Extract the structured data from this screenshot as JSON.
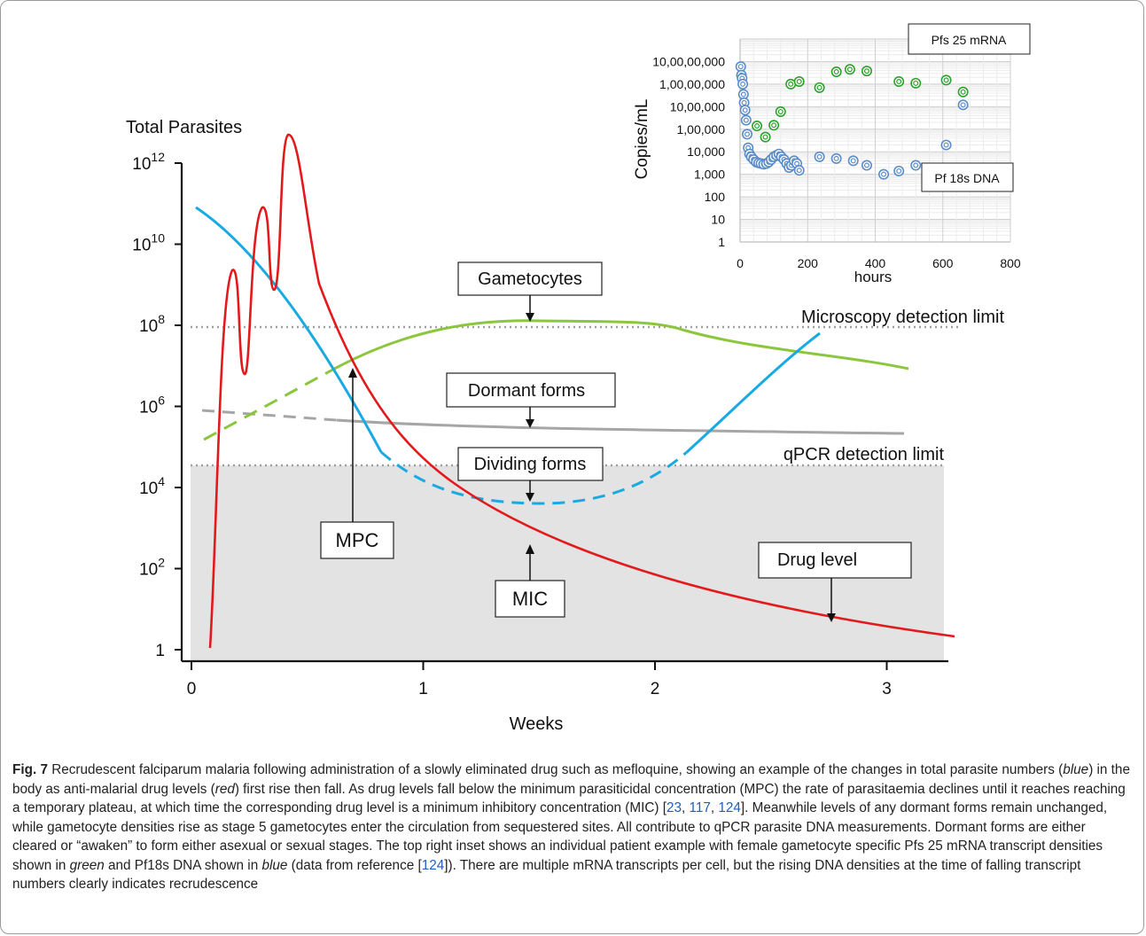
{
  "main_chart": {
    "ylabel": "Total Parasites",
    "xlabel": "Weeks",
    "y_ticks": [
      {
        "base": "10",
        "exp": "12",
        "value": 1000000000000.0
      },
      {
        "base": "10",
        "exp": "10",
        "value": 10000000000.0
      },
      {
        "base": "10",
        "exp": "8",
        "value": 100000000.0
      },
      {
        "base": "10",
        "exp": "6",
        "value": 1000000.0
      },
      {
        "base": "10",
        "exp": "4",
        "value": 10000.0
      },
      {
        "base": "10",
        "exp": "2",
        "value": 100.0
      },
      {
        "base": "1",
        "exp": "",
        "value": 1
      }
    ],
    "x_ticks": [
      "0",
      "1",
      "2",
      "3"
    ],
    "microscopy_label": "Microscopy detection limit",
    "qpcr_label": "qPCR detection limit",
    "boxes": {
      "gametocytes": "Gametocytes",
      "dormant": "Dormant forms",
      "dividing": "Dividing forms",
      "mpc": "MPC",
      "mic": "MIC",
      "drug": "Drug level"
    },
    "colors": {
      "drug": "#e31a1c",
      "parasites": "#1ba9e1",
      "gametocytes": "#8cc63f",
      "dormant": "#a6a6a6",
      "shade": "#e3e3e3",
      "limit": "#a0a0a0"
    }
  },
  "chart_data": [
    {
      "type": "line",
      "x_unit": "weeks",
      "y_scale": "log",
      "xlim": [
        0,
        3.25
      ],
      "ylim": [
        1,
        1000000000000.0
      ],
      "series": [
        {
          "name": "Drug level",
          "x": [
            0.08,
            0.13,
            0.18,
            0.2,
            0.23,
            0.27,
            0.32,
            0.35,
            0.39,
            0.43,
            0.5,
            0.7,
            1.0,
            1.5,
            2.0,
            2.5,
            3.2
          ],
          "y": [
            1,
            10000000.0,
            2000000000.0,
            1000000000.0,
            8000000.0,
            1000000000.0,
            70000000000.0,
            200000000.0,
            5000000000.0,
            1500000000000.0,
            30000000000.0,
            15000000.0,
            100000.0,
            3000.0,
            200,
            30,
            3
          ]
        },
        {
          "name": "Total parasites (blue)",
          "x": [
            0,
            0.2,
            0.4,
            0.6,
            0.8,
            1.0,
            1.2,
            1.45,
            1.7,
            1.95,
            2.15,
            2.4,
            2.7
          ],
          "y": [
            50000000000.0,
            5000000000.0,
            200000000.0,
            8000000.0,
            300000.0,
            40000.0,
            10000.0,
            5000.0,
            8000.0,
            30000.0,
            200000.0,
            3000000.0,
            50000000.0
          ]
        },
        {
          "name": "Gametocytes",
          "x": [
            0.13,
            0.3,
            0.5,
            0.7,
            0.9,
            1.1,
            1.35,
            1.6,
            1.9,
            2.2,
            2.5,
            2.8,
            3.1
          ],
          "y": [
            150000.0,
            700000.0,
            3000000.0,
            15000000.0,
            40000000.0,
            90000000.0,
            140000000.0,
            150000000.0,
            130000000.0,
            70000000.0,
            35000000.0,
            18000000.0,
            10000000.0
          ]
        },
        {
          "name": "Dormant forms",
          "x": [
            0.03,
            0.6,
            1.0,
            1.5,
            2.0,
            2.5,
            3.1
          ],
          "y": [
            1000000.0,
            500000.0,
            400000.0,
            370000.0,
            350000.0,
            320000.0,
            300000.0
          ]
        }
      ],
      "reference_lines": {
        "microscopy_limit": 100000000.0,
        "qpcr_limit": 50000.0
      }
    },
    {
      "type": "scatter",
      "title": "",
      "xlabel": "hours",
      "ylabel": "Copies/mL",
      "y_scale": "log",
      "xlim": [
        0,
        800
      ],
      "ylim": [
        1,
        1000000000
      ],
      "x_ticks": [
        "0",
        "200",
        "400",
        "600",
        "800"
      ],
      "y_ticks": [
        "1",
        "10",
        "100",
        "1,000",
        "10,000",
        "1,00,000",
        "10,00,000",
        "1,00,00,000",
        "10,00,00,000"
      ],
      "grid": true,
      "series": [
        {
          "name": "Pfs 25 mRNA",
          "color": "#2ca02c",
          "x": [
            50,
            75,
            100,
            120,
            150,
            175,
            235,
            285,
            325,
            375,
            470,
            520,
            610,
            660
          ],
          "y": [
            140000,
            45000,
            150000,
            600000,
            10000000,
            13000000,
            7000000,
            35000000,
            45000000,
            38000000,
            13000000,
            11000000,
            15000000,
            4500000
          ]
        },
        {
          "name": "Pf 18s DNA",
          "color": "#5b8cc9",
          "x": [
            2,
            4,
            6,
            8,
            10,
            12,
            15,
            18,
            21,
            24,
            28,
            33,
            40,
            48,
            55,
            62,
            70,
            78,
            85,
            92,
            100,
            108,
            115,
            122,
            130,
            138,
            145,
            152,
            160,
            168,
            175,
            235,
            285,
            335,
            375,
            425,
            470,
            520,
            610,
            660
          ],
          "y": [
            60000000,
            25000000,
            18000000,
            10000000,
            3500000,
            1500000,
            700000,
            250000,
            60000,
            15000,
            8000,
            6000,
            4500,
            3500,
            3200,
            3000,
            2800,
            3000,
            3500,
            4500,
            6000,
            7000,
            8000,
            6000,
            4500,
            3000,
            2000,
            2500,
            4000,
            3000,
            1500,
            6000,
            5000,
            4000,
            2500,
            1000,
            1400,
            2500,
            20000,
            1200000
          ]
        }
      ]
    }
  ],
  "inset": {
    "ylabel": "Copies/mL",
    "xlabel": "hours",
    "legend_mrna": "Pfs 25 mRNA",
    "legend_dna": "Pf 18s DNA"
  },
  "caption": {
    "fig_label": "Fig. 7",
    "p1": "  Recrudescent falciparum malaria following administration of a slowly eliminated drug such as mefloquine, showing an example of the changes in total parasite numbers (",
    "blue1": "blue",
    "p2": ") in the body as anti-malarial drug levels (",
    "red1": "red",
    "p3": ") first rise then fall. As drug levels fall below the minimum parasiticidal concentration (MPC) the rate of parasitaemia declines until it reaches reaching a temporary plateau, at which time the corresponding drug level is a minimum inhibitory concentration (MIC) [",
    "r23": "23",
    "sep1": ", ",
    "r117": "117",
    "sep2": ", ",
    "r124": "124",
    "p4": "]. Meanwhile levels of any dormant forms remain unchanged, while gametocyte densities rise as stage 5 gametocytes enter the circulation from sequestered sites. All contribute to qPCR parasite DNA measurements. Dormant forms are either cleared or “awaken” to form either asexual or sexual stages. The top right inset shows an individual patient example with female gametocyte specific Pfs 25 mRNA transcript densities shown in ",
    "green1": "green",
    "p5": " and Pf18s DNA shown in ",
    "blue2": "blue",
    "p6": " (data from reference [",
    "r124b": "124",
    "p7": "]). There are multiple mRNA transcripts per cell, but the rising DNA densities at the time of falling transcript numbers clearly indicates recrudescence"
  }
}
